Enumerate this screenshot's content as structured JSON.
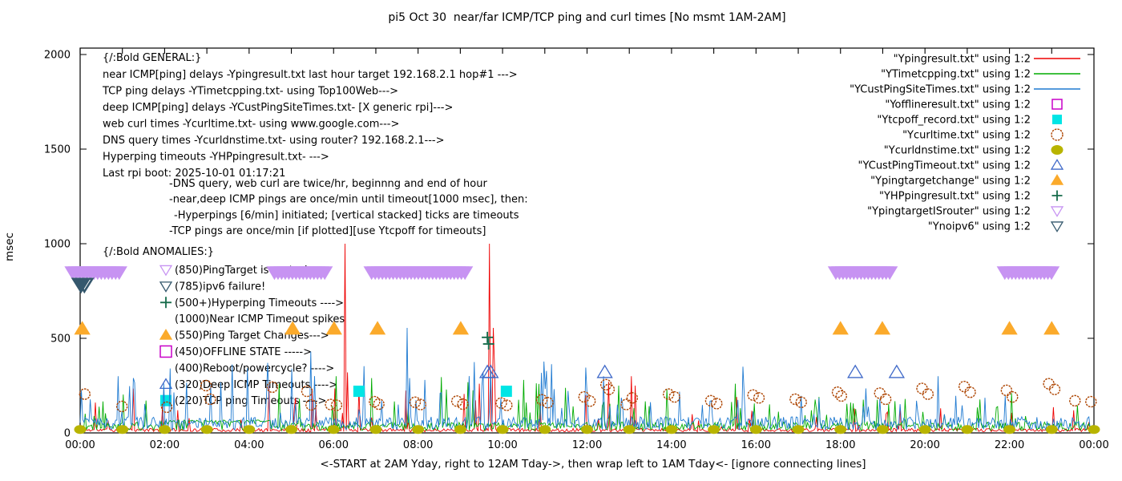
{
  "chart_data": {
    "type": "line",
    "title": "pi5 Oct 30  near/far ICMP/TCP ping and curl times [No msmt 1AM-2AM]",
    "xlabel": "<-START at 2AM Yday, right to 12AM Tday->, then wrap left to 1AM Tday<- [ignore connecting lines]",
    "ylabel": "msec",
    "xlim_hours": [
      0,
      24
    ],
    "ylim": [
      0,
      2000
    ],
    "x_tick_labels": [
      "00:00",
      "02:00",
      "04:00",
      "06:00",
      "08:00",
      "10:00",
      "12:00",
      "14:00",
      "16:00",
      "18:00",
      "20:00",
      "22:00",
      "00:00"
    ],
    "y_tick_labels": [
      "0",
      "500",
      "1000",
      "1500",
      "2000"
    ],
    "y_tick_values": [
      0,
      500,
      1000,
      1500,
      2000
    ],
    "grid": false,
    "legend_position": "top-right-inside",
    "legend": [
      {
        "label": "\"Ypingresult.txt\" using 1:2",
        "symbol": "line",
        "color": "#ee0000"
      },
      {
        "label": "\"YTimetcpping.txt\" using 1:2",
        "symbol": "line",
        "color": "#00ab00"
      },
      {
        "label": "\"YCustPingSiteTimes.txt\" using 1:2",
        "symbol": "line",
        "color": "#1f7ad1"
      },
      {
        "label": "\"Yofflineresult.txt\" using 1:2",
        "symbol": "square-open",
        "color": "#c800c8"
      },
      {
        "label": "\"Ytcpoff_record.txt\" using 1:2",
        "symbol": "square-filled",
        "color": "#00e5e5"
      },
      {
        "label": "\"Ycurltime.txt\" using 1:2",
        "symbol": "circle-open",
        "color": "#ad4400"
      },
      {
        "label": "\"Ycurldnstime.txt\" using 1:2",
        "symbol": "circle-filled",
        "color": "#b8b400"
      },
      {
        "label": "\"YCustPingTimeout.txt\" using 1:2",
        "symbol": "triangle-up-open",
        "color": "#3e68c8"
      },
      {
        "label": "\"Ypingtargetchange\" using 1:2",
        "symbol": "triangle-up-filled",
        "color": "#fbaa2b"
      },
      {
        "label": "\"YHPpingresult.txt\" using 1:2",
        "symbol": "plus",
        "color": "#156b4a"
      },
      {
        "label": "\"YpingtargetISrouter\" using 1:2",
        "symbol": "triangle-down-open",
        "color": "#c793f2"
      },
      {
        "label": "\"Ynoipv6\" using 1:2",
        "symbol": "triangle-down-open",
        "color": "#35586d"
      }
    ],
    "annotations": {
      "general_header": "{/:Bold GENERAL:}",
      "general": [
        "near ICMP[ping] delays -Ypingresult.txt last hour target 192.168.2.1 hop#1 --->",
        "TCP ping delays -YTimetcpping.txt- using Top100Web--->",
        "deep ICMP[ping] delays -YCustPingSiteTimes.txt- [X generic rpi]--->",
        "web curl times -Ycurltime.txt- using www.google.com--->",
        "DNS query times -Ycurldnstime.txt- using router? 192.168.2.1--->",
        "Hyperping timeouts -YHPpingresult.txt- --->",
        "Last rpi boot: 2025-10-01 01:17:21"
      ],
      "notes": [
        "-DNS query, web curl are twice/hr, beginnng and end of hour",
        "-near,deep ICMP pings are once/min until timeout[1000 msec], then:",
        "-Hyperpings [6/min] initiated; [vertical stacked] ticks are timeouts",
        "-TCP pings are once/min [if plotted][use Ytcpoff for timeouts]"
      ],
      "anomalies_header": "{/:Bold ANOMALIES:}",
      "anomalies": [
        {
          "marker": "triangle-down-open",
          "color": "#c793f2",
          "text": "(850)PingTarget is router!"
        },
        {
          "marker": "triangle-down-open",
          "color": "#35586d",
          "text": "(785)ipv6 failure!"
        },
        {
          "marker": "plus",
          "color": "#156b4a",
          "text": "(500+)Hyperping Timeouts ---->"
        },
        {
          "marker": "none",
          "color": "",
          "text": "(1000)Near ICMP Timeout spikes"
        },
        {
          "marker": "triangle-up-filled",
          "color": "#fbaa2b",
          "text": "(550)Ping Target Changes--->"
        },
        {
          "marker": "square-open",
          "color": "#c800c8",
          "text": "(450)OFFLINE STATE ----->"
        },
        {
          "marker": "none",
          "color": "",
          "text": "(400)Reboot/powercycle? ---->"
        },
        {
          "marker": "triangle-up-open",
          "color": "#3e68c8",
          "text": "(320)Deep ICMP Timeouts ---->"
        },
        {
          "marker": "square-filled",
          "color": "#00e5e5",
          "text": "(220)TCP ping Timeouts ---->"
        }
      ]
    },
    "series": [
      {
        "name": "Ypingresult.txt",
        "color": "#ee0000",
        "seed": 11,
        "base": 6,
        "jitter": 18,
        "segments": [
          {
            "range": [
              0,
              12.2
            ],
            "p_spike": 0.035,
            "lo": 50,
            "hi": 260
          },
          {
            "range": [
              12.2,
              24
            ],
            "p_spike": 0.05,
            "lo": 30,
            "hi": 140
          }
        ],
        "spikes": [
          [
            0.35,
            160
          ],
          [
            2.3,
            120
          ],
          [
            5.1,
            185
          ],
          [
            6.26,
            1000
          ],
          [
            6.33,
            320
          ],
          [
            6.6,
            240
          ],
          [
            9.45,
            260
          ],
          [
            9.68,
            1000
          ],
          [
            9.77,
            555
          ],
          [
            9.81,
            350
          ],
          [
            12.5,
            270
          ],
          [
            13.05,
            300
          ],
          [
            13.15,
            250
          ],
          [
            15.55,
            190
          ]
        ]
      },
      {
        "name": "YTimetcpping.txt",
        "color": "#00ab00",
        "seed": 22,
        "base": 12,
        "jitter": 45,
        "flat": [
          1.9,
          4.5,
          55
        ],
        "segments": [
          {
            "range": [
              0,
              12.2
            ],
            "p_spike": 0.06,
            "lo": 80,
            "hi": 280
          },
          {
            "range": [
              12.2,
              24
            ],
            "p_spike": 0.06,
            "lo": 50,
            "hi": 180
          }
        ],
        "spikes": [
          [
            4.7,
            260
          ],
          [
            6.05,
            300
          ],
          [
            6.9,
            290
          ],
          [
            8.55,
            295
          ],
          [
            10.5,
            280
          ],
          [
            12.75,
            250
          ],
          [
            13.9,
            230
          ],
          [
            15.5,
            260
          ],
          [
            17.5,
            190
          ],
          [
            22.05,
            210
          ]
        ]
      },
      {
        "name": "YCustPingSiteTimes.txt",
        "color": "#1f7ad1",
        "seed": 33,
        "base": 15,
        "jitter": 70,
        "segments": [
          {
            "range": [
              0,
              12.2
            ],
            "p_spike": 0.09,
            "lo": 100,
            "hi": 380
          },
          {
            "range": [
              12.2,
              24
            ],
            "p_spike": 0.07,
            "lo": 60,
            "hi": 220
          }
        ],
        "spikes": [
          [
            0.9,
            300
          ],
          [
            1.25,
            290
          ],
          [
            3.1,
            255
          ],
          [
            5.0,
            340
          ],
          [
            5.45,
            430
          ],
          [
            5.55,
            300
          ],
          [
            7.75,
            555
          ],
          [
            7.8,
            290
          ],
          [
            8.15,
            280
          ],
          [
            9.5,
            250
          ],
          [
            9.72,
            330
          ],
          [
            12.4,
            300
          ],
          [
            15.68,
            350
          ],
          [
            18.6,
            235
          ],
          [
            20.3,
            300
          ]
        ]
      }
    ],
    "point_sets": {
      "curl_circles": {
        "name": "Ycurltime.txt",
        "color": "#ad4400",
        "points": [
          [
            0.11,
            205
          ],
          [
            0.99,
            140
          ],
          [
            2.05,
            136
          ],
          [
            2.98,
            250
          ],
          [
            3.08,
            178
          ],
          [
            4.55,
            242
          ],
          [
            5.37,
            220
          ],
          [
            5.47,
            148
          ],
          [
            5.93,
            150
          ],
          [
            6.07,
            146
          ],
          [
            6.97,
            165
          ],
          [
            7.07,
            152
          ],
          [
            7.93,
            162
          ],
          [
            8.06,
            150
          ],
          [
            8.92,
            168
          ],
          [
            9.06,
            152
          ],
          [
            9.97,
            158
          ],
          [
            10.1,
            146
          ],
          [
            10.93,
            175
          ],
          [
            11.07,
            160
          ],
          [
            11.93,
            190
          ],
          [
            12.07,
            168
          ],
          [
            12.45,
            255
          ],
          [
            12.52,
            230
          ],
          [
            12.93,
            150
          ],
          [
            13.07,
            185
          ],
          [
            13.93,
            205
          ],
          [
            14.07,
            190
          ],
          [
            14.93,
            170
          ],
          [
            15.07,
            155
          ],
          [
            15.93,
            200
          ],
          [
            16.07,
            185
          ],
          [
            16.93,
            178
          ],
          [
            17.07,
            162
          ],
          [
            17.93,
            215
          ],
          [
            18.02,
            195
          ],
          [
            18.93,
            210
          ],
          [
            19.07,
            178
          ],
          [
            19.93,
            235
          ],
          [
            20.07,
            205
          ],
          [
            20.93,
            245
          ],
          [
            21.07,
            215
          ],
          [
            21.93,
            225
          ],
          [
            22.07,
            190
          ],
          [
            22.93,
            260
          ],
          [
            23.07,
            230
          ],
          [
            23.55,
            170
          ],
          [
            23.93,
            165
          ]
        ]
      },
      "dns_dots": {
        "name": "Ycurldnstime.txt",
        "color": "#b8b400",
        "value": 18,
        "hours": [
          0,
          1,
          2,
          3,
          4,
          5,
          6,
          7,
          8,
          9,
          10,
          11,
          12,
          13,
          14,
          15,
          16,
          17,
          18,
          19,
          20,
          21,
          22,
          23,
          24
        ]
      },
      "deep_timeout_triangles": {
        "name": "YCustPingTimeout.txt",
        "color": "#3e68c8",
        "value": 320,
        "hours": [
          9.64,
          9.72,
          12.42,
          18.35,
          19.33
        ]
      },
      "target_change_triangles": {
        "name": "Ypingtargetchange",
        "color": "#fbaa2b",
        "value": 550,
        "hours": [
          0.05,
          5.03,
          6.01,
          7.04,
          9.01,
          18.0,
          18.99,
          22.0,
          23.0
        ]
      },
      "tcpoff_squares": {
        "name": "Ytcpoff_record.txt",
        "color": "#00e5e5",
        "value": 220,
        "hours": [
          6.6,
          10.09
        ]
      },
      "hyperping_plus": {
        "name": "YHPpingresult.txt",
        "color": "#156b4a",
        "points": [
          [
            9.64,
            505
          ],
          [
            9.67,
            470
          ]
        ]
      },
      "noipv6_triangles": {
        "name": "Ynoipv6",
        "color": "#35586d",
        "value": 785,
        "hours": [
          0.02,
          0.1
        ]
      },
      "isrouter_bands": {
        "name": "YpingtargetISrouter",
        "color": "#c793f2",
        "value": 850,
        "segments": [
          [
            -0.18,
            0.98
          ],
          [
            4.6,
            5.8
          ],
          [
            6.9,
            9.15
          ],
          [
            17.89,
            19.2
          ],
          [
            21.89,
            23.08
          ]
        ]
      }
    }
  }
}
